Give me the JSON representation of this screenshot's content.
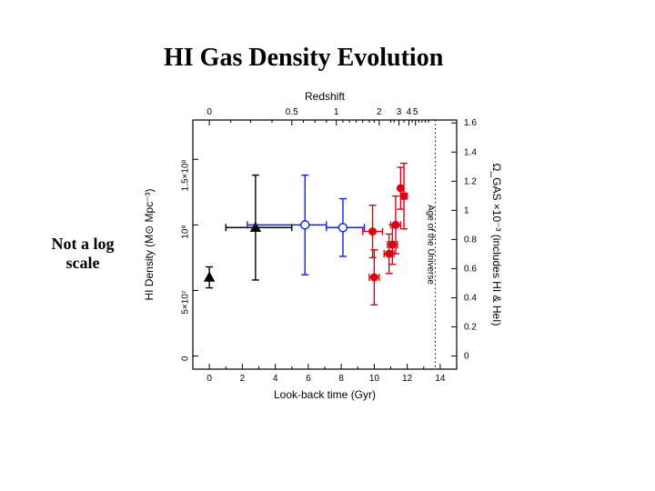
{
  "title_text": "HI Gas Density Evolution",
  "annotation_text": "Not a log\nscale",
  "chart": {
    "type": "scatter-with-errorbars",
    "background_color": "#ffffff",
    "frame_color": "#000000",
    "frame_width": 1.2,
    "aspect": "410x370",
    "x_axis_bottom": {
      "label": "Look-back time (Gyr)",
      "label_fontsize": 12,
      "lim": [
        -1,
        15
      ],
      "ticks": [
        0,
        2,
        4,
        6,
        8,
        10,
        12,
        14
      ],
      "tick_fontsize": 10,
      "minor_step": 1
    },
    "x_axis_top": {
      "label": "Redshift",
      "label_fontsize": 12,
      "ticks": [
        0,
        0.5,
        1,
        2,
        3,
        4,
        5
      ],
      "tick_positions_gyr": [
        0,
        5.0,
        7.7,
        10.3,
        11.5,
        12.1,
        12.5
      ],
      "tick_fontsize": 10,
      "minor_ticks_gyr": [
        1.3,
        2.5,
        3.8,
        5.7,
        6.4,
        7.1,
        8.1,
        8.5,
        8.9,
        9.3,
        9.7,
        10.0,
        11.0,
        11.2,
        11.8,
        12.3,
        12.7,
        12.9,
        13.1,
        13.3
      ]
    },
    "y_axis_left": {
      "label": "HI Density (M⊙ Mpc⁻³)",
      "label_fontsize": 12,
      "lim": [
        -10000000.0,
        180000000.0
      ],
      "ticks": [
        0,
        50000000.0,
        100000000.0,
        150000000.0
      ],
      "tick_labels": [
        "0",
        "5×10⁷",
        "10⁸",
        "1.5×10⁸"
      ],
      "tick_fontsize": 10
    },
    "y_axis_right": {
      "label": "Ω_GAS ×10⁻³ (includes HI & HeI)",
      "label_fontsize": 12,
      "lim": [
        -0.09,
        1.62
      ],
      "ticks": [
        0,
        0.2,
        0.4,
        0.6,
        0.8,
        1,
        1.2,
        1.4,
        1.6
      ],
      "tick_fontsize": 10
    },
    "age_line": {
      "x_gyr": 13.7,
      "label": "Age of the Universe",
      "style": "dotted",
      "color": "#000000",
      "width": 1
    },
    "series": [
      {
        "name": "black-triangles",
        "marker": "triangle-filled",
        "color": "#000000",
        "size": 9,
        "line_width": 1.4,
        "points": [
          {
            "x": 0.0,
            "y": 60000000.0,
            "xerr": [
              0.0,
              0.0
            ],
            "yerr": [
              8000000.0,
              8000000.0
            ]
          },
          {
            "x": 2.8,
            "y": 98000000.0,
            "xerr": [
              1.8,
              2.2
            ],
            "yerr": [
              40000000.0,
              40000000.0
            ]
          }
        ]
      },
      {
        "name": "blue-open-circles",
        "marker": "circle-open",
        "color": "#1020e0",
        "size": 9,
        "line_width": 1.4,
        "points": [
          {
            "x": 5.8,
            "y": 100000000.0,
            "xerr": [
              3.5,
              1.3
            ],
            "yerr": [
              38000000.0,
              38000000.0
            ]
          },
          {
            "x": 8.1,
            "y": 98000000.0,
            "xerr": [
              1.0,
              1.3
            ],
            "yerr": [
              22000000.0,
              22000000.0
            ]
          }
        ]
      },
      {
        "name": "red-filled-circles",
        "marker": "circle-filled",
        "color": "#e00010",
        "size": 8,
        "line_width": 1.4,
        "points": [
          {
            "x": 9.9,
            "y": 95000000.0,
            "xerr": [
              0.6,
              0.6
            ],
            "yerr": [
              20000000.0,
              20000000.0
            ]
          },
          {
            "x": 10.0,
            "y": 60000000.0,
            "xerr": [
              0.3,
              0.3
            ],
            "yerr": [
              21000000.0,
              21000000.0
            ]
          },
          {
            "x": 10.9,
            "y": 78000000.0,
            "xerr": [
              0.3,
              0.3
            ],
            "yerr": [
              15000000.0,
              15000000.0
            ]
          },
          {
            "x": 11.1,
            "y": 85000000.0,
            "xerr": [
              0.3,
              0.3
            ],
            "yerr": [
              15000000.0,
              15000000.0
            ]
          },
          {
            "x": 11.3,
            "y": 100000000.0,
            "xerr": [
              0.3,
              0.3
            ],
            "yerr": [
              22000000.0,
              22000000.0
            ]
          },
          {
            "x": 11.6,
            "y": 128000000.0,
            "xerr": [
              0.0,
              0.0
            ],
            "yerr": [
              16000000.0,
              16000000.0
            ]
          },
          {
            "x": 11.8,
            "y": 122000000.0,
            "xerr": [
              0.2,
              0.2
            ],
            "yerr": [
              25000000.0,
              25000000.0
            ]
          }
        ]
      }
    ]
  }
}
